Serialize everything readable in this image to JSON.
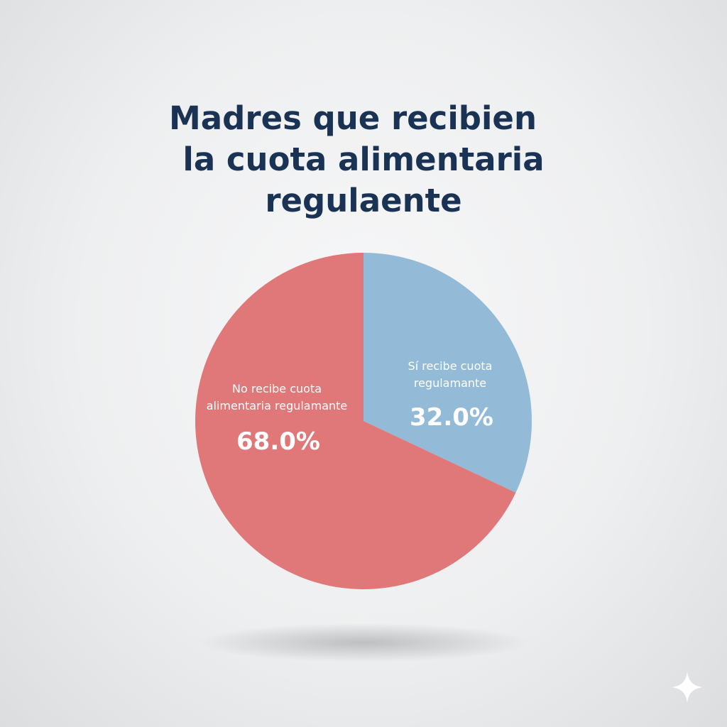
{
  "chart_data": {
    "type": "pie",
    "title": "Madres que recibien la cuota alimentaria regulaente",
    "title_lines": [
      "Madres que recibien",
      "la cuota alimentaria",
      "regulaente"
    ],
    "slices": [
      {
        "label_lines": [
          "Sí recibe cuota",
          "regulamante"
        ],
        "value": 32.0,
        "value_label": "32.0%",
        "color": "#93bad6"
      },
      {
        "label_lines": [
          "No recibe cuota",
          "alimentaria regulamante"
        ],
        "value": 68.0,
        "value_label": "68.0%",
        "color": "#e07778"
      }
    ],
    "start_angle_deg": 0,
    "direction": "clockwise",
    "legend": "none"
  },
  "decor": {
    "watermark_icon": "sparkle-icon"
  }
}
